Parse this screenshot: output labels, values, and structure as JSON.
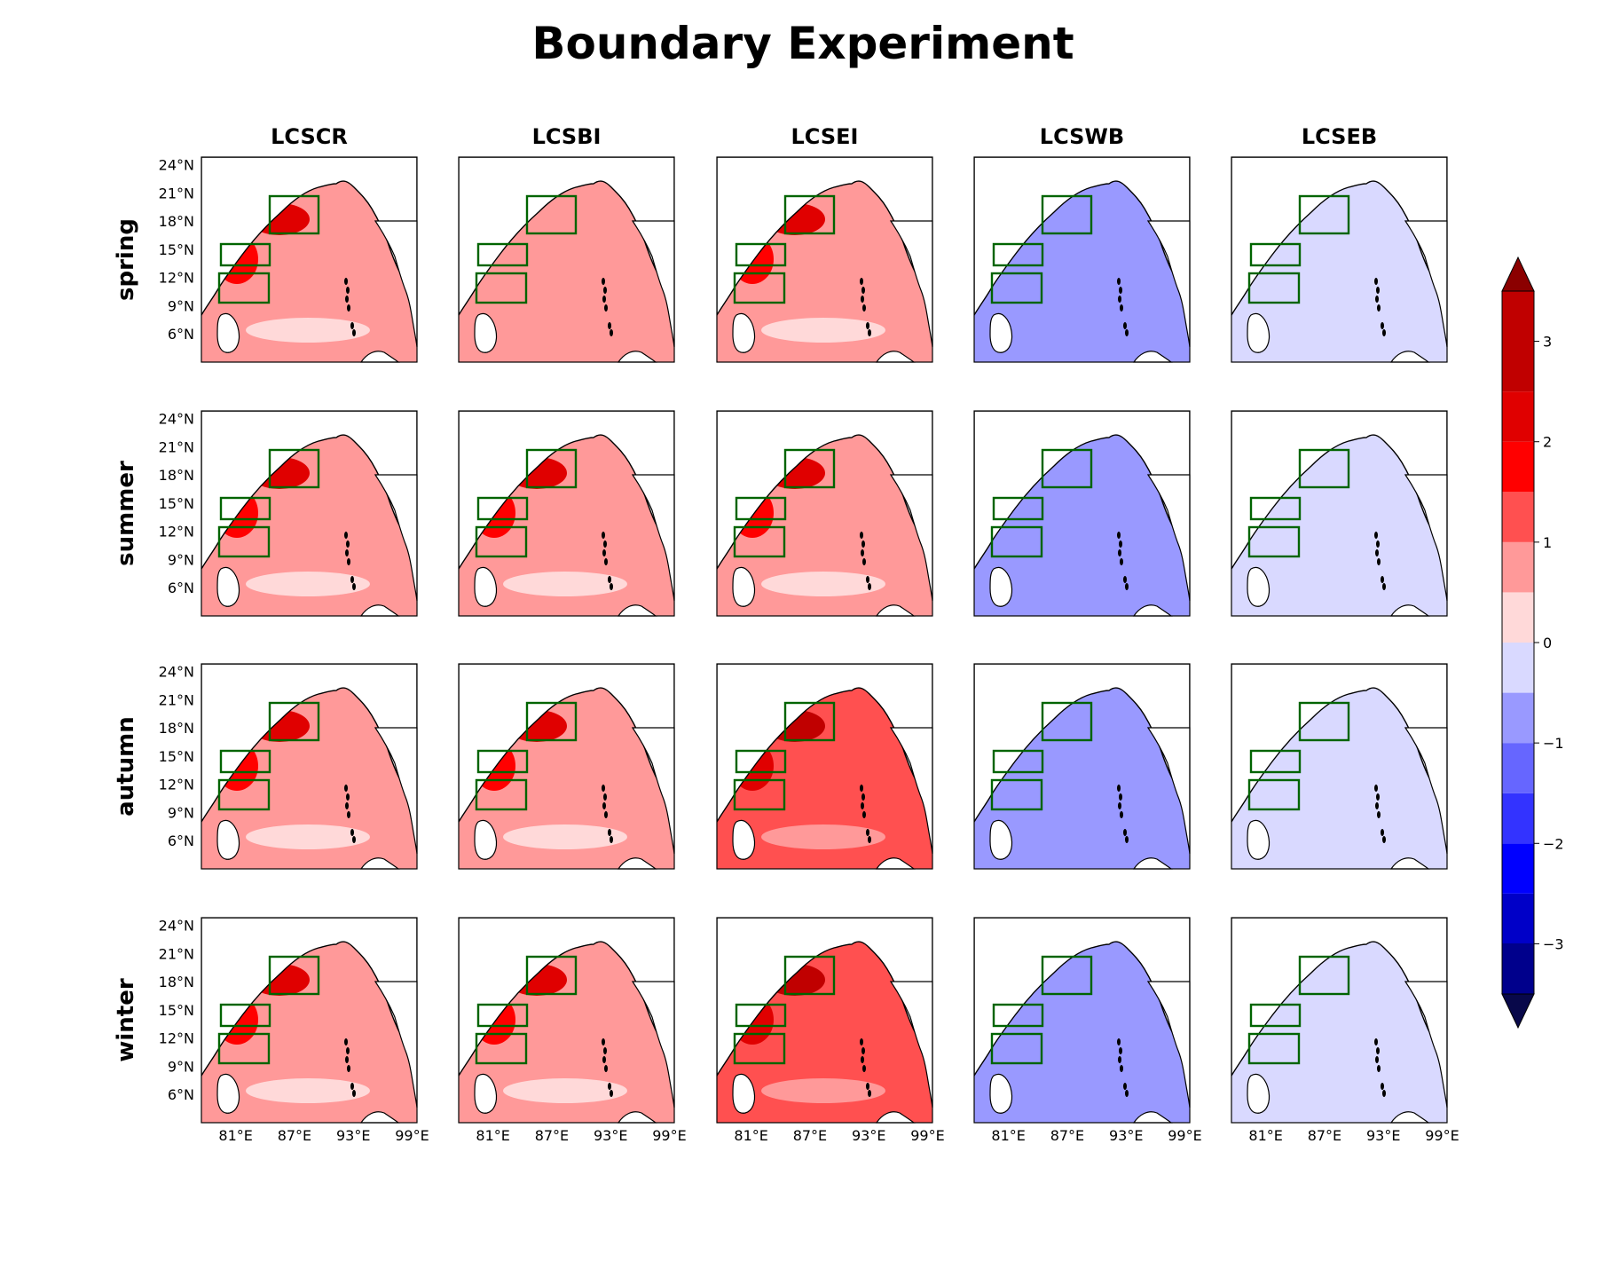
{
  "figure": {
    "title": "Boundary Experiment"
  },
  "chart_data": {
    "type": "heatmap",
    "title": "Boundary Experiment",
    "columns": [
      "LCSCR",
      "LCSBI",
      "LCSEI",
      "LCSWB",
      "LCSEB"
    ],
    "rows": [
      "spring",
      "summer",
      "autumn",
      "winter"
    ],
    "x_ticks": [
      "81°E",
      "87°E",
      "93°E",
      "99°E"
    ],
    "y_ticks": [
      "24°N",
      "21°N",
      "18°N",
      "15°N",
      "12°N",
      "9°N",
      "6°N"
    ],
    "colorbar": {
      "ticks": [
        "3",
        "2",
        "1",
        "0",
        "−1",
        "−2",
        "−3"
      ],
      "range": [
        -3.5,
        3.5
      ],
      "step": 0.5,
      "extend": "both",
      "levels_low_to_high": [
        "#08084a",
        "#00008c",
        "#0000c8",
        "#0000ff",
        "#3333ff",
        "#6666ff",
        "#9999ff",
        "#d9d9ff",
        "#ffd9d9",
        "#ff9999",
        "#ff5050",
        "#ff0000",
        "#e00000",
        "#c00000",
        "#8b0000"
      ]
    },
    "panel_mean_level": {
      "spring": {
        "LCSCR": 0.6,
        "LCSBI": 0.5,
        "LCSEI": 0.7,
        "LCSWB": -0.7,
        "LCSEB": -0.3
      },
      "summer": {
        "LCSCR": 0.7,
        "LCSBI": 0.7,
        "LCSEI": 0.7,
        "LCSWB": -0.7,
        "LCSEB": -0.3
      },
      "autumn": {
        "LCSCR": 0.9,
        "LCSBI": 0.6,
        "LCSEI": 1.1,
        "LCSWB": -0.7,
        "LCSEB": -0.3
      },
      "winter": {
        "LCSCR": 0.9,
        "LCSBI": 0.6,
        "LCSEI": 1.2,
        "LCSWB": -0.7,
        "LCSEB": -0.3
      }
    },
    "boxes_color": "#006400",
    "coastline_color": "#000000"
  }
}
